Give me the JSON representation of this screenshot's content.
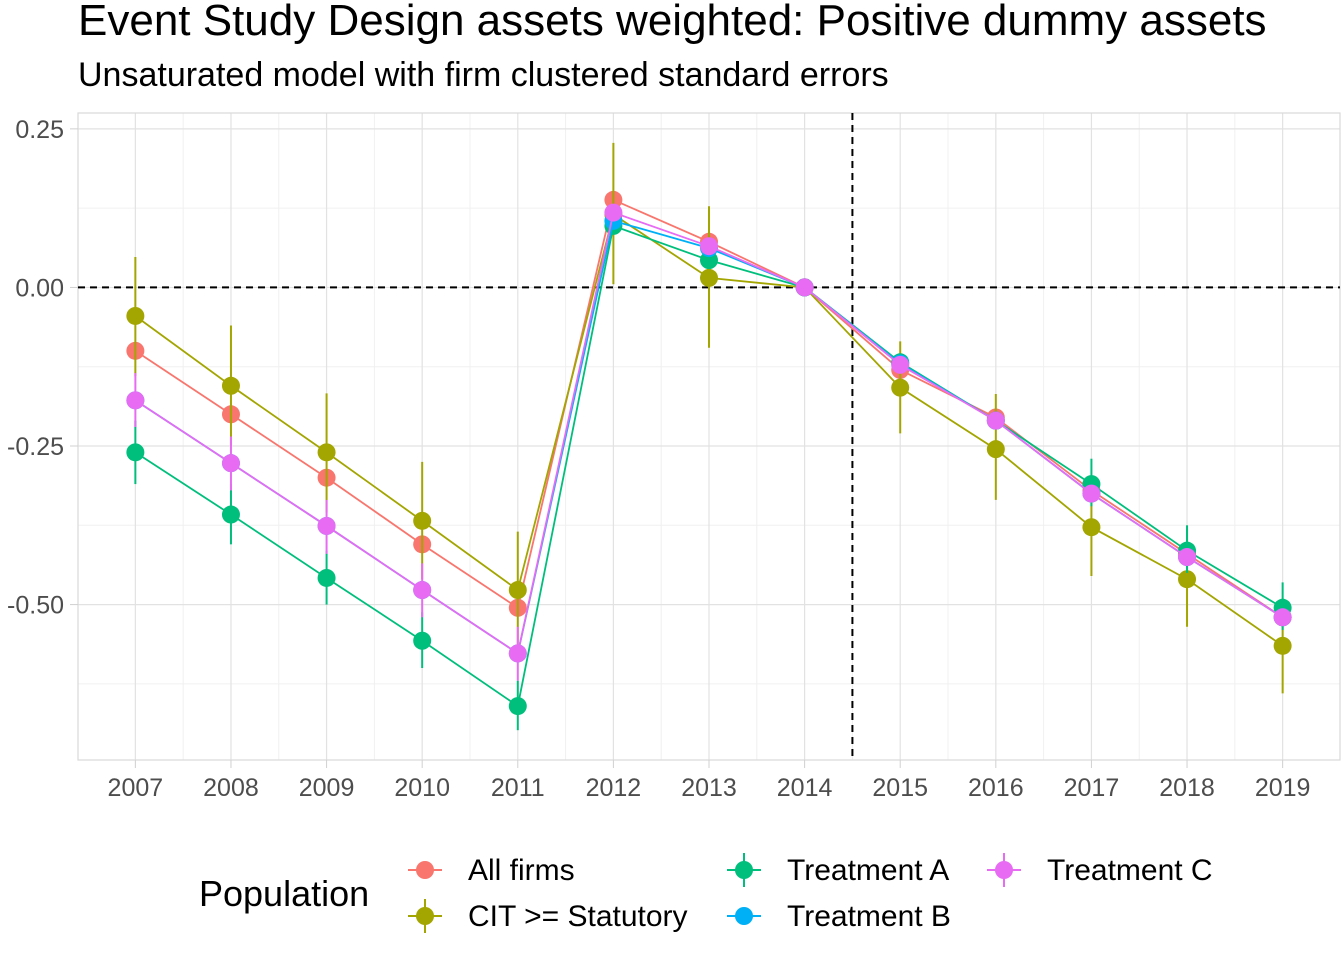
{
  "chart_data": {
    "type": "line",
    "title": "Event Study Design assets weighted: Positive dummy assets",
    "subtitle": "Unsaturated model with firm clustered standard errors",
    "xlabel": "",
    "ylabel": "",
    "x": [
      2007,
      2008,
      2009,
      2010,
      2011,
      2012,
      2013,
      2014,
      2015,
      2016,
      2017,
      2018,
      2019
    ],
    "x_tick_labels": [
      "2007",
      "2008",
      "2009",
      "2010",
      "2011",
      "2012",
      "2013",
      "2014",
      "2015",
      "2016",
      "2017",
      "2018",
      "2019"
    ],
    "y_ticks": [
      0.25,
      0.0,
      -0.25,
      -0.5
    ],
    "y_tick_labels": [
      "0.25",
      "0.00",
      "-0.25",
      "-0.50"
    ],
    "xlim": [
      2006.4,
      2019.6
    ],
    "ylim": [
      -0.745,
      0.275
    ],
    "grid": true,
    "reference_lines": {
      "horizontal_y": 0.0,
      "vertical_x": 2014.5,
      "style": "dashed"
    },
    "legend": {
      "title": "Population",
      "placement": "bottom",
      "entries": [
        "All firms",
        "CIT >= Statutory",
        "Treatment A",
        "Treatment B",
        "Treatment C"
      ]
    },
    "series": [
      {
        "name": "All firms",
        "color": "#F8766D",
        "values": [
          -0.1,
          -0.2,
          -0.3,
          -0.405,
          -0.505,
          0.138,
          0.072,
          0.0,
          -0.13,
          -0.205,
          -0.32,
          -0.42,
          -0.52
        ],
        "ci_low": [
          null,
          null,
          null,
          null,
          null,
          null,
          null,
          null,
          null,
          null,
          null,
          null,
          null
        ],
        "ci_high": [
          null,
          null,
          null,
          null,
          null,
          null,
          null,
          null,
          null,
          null,
          null,
          null,
          null
        ]
      },
      {
        "name": "CIT >= Statutory",
        "color": "#A3A500",
        "values": [
          -0.045,
          -0.155,
          -0.26,
          -0.368,
          -0.477,
          0.115,
          0.015,
          0.0,
          -0.158,
          -0.255,
          -0.378,
          -0.46,
          -0.565
        ],
        "ci_low": [
          -0.14,
          -0.25,
          -0.355,
          -0.46,
          -0.57,
          0.005,
          -0.095,
          null,
          -0.23,
          -0.335,
          -0.455,
          -0.535,
          -0.64
        ],
        "ci_high": [
          0.048,
          -0.06,
          -0.167,
          -0.275,
          -0.385,
          0.228,
          0.128,
          null,
          -0.085,
          -0.168,
          -0.3,
          -0.38,
          -0.49
        ]
      },
      {
        "name": "Treatment A",
        "color": "#00BF7D",
        "values": [
          -0.26,
          -0.358,
          -0.458,
          -0.557,
          -0.66,
          0.097,
          0.043,
          0.0,
          -0.118,
          -0.21,
          -0.31,
          -0.415,
          -0.505
        ],
        "ci_low": [
          -0.31,
          -0.405,
          -0.5,
          -0.6,
          -0.698,
          null,
          null,
          null,
          null,
          null,
          -0.345,
          -0.45,
          -0.54
        ],
        "ci_high": [
          -0.21,
          -0.31,
          -0.415,
          -0.512,
          -0.62,
          null,
          null,
          null,
          null,
          null,
          -0.27,
          -0.375,
          -0.465
        ]
      },
      {
        "name": "Treatment B",
        "color": "#00B0F6",
        "values": [
          -0.178,
          -0.277,
          -0.376,
          -0.477,
          -0.577,
          0.105,
          0.062,
          0.0,
          -0.12,
          -0.21,
          -0.325,
          -0.425,
          -0.52
        ],
        "ci_low": [
          null,
          null,
          null,
          null,
          null,
          null,
          null,
          null,
          null,
          null,
          null,
          null,
          null
        ],
        "ci_high": [
          null,
          null,
          null,
          null,
          null,
          null,
          null,
          null,
          null,
          null,
          null,
          null,
          null
        ]
      },
      {
        "name": "Treatment C",
        "color": "#E76BF3",
        "values": [
          -0.178,
          -0.277,
          -0.376,
          -0.477,
          -0.577,
          0.118,
          0.065,
          0.0,
          -0.122,
          -0.21,
          -0.325,
          -0.425,
          -0.52
        ],
        "ci_low": [
          -0.22,
          -0.32,
          -0.42,
          -0.52,
          -0.62,
          null,
          null,
          null,
          null,
          null,
          null,
          null,
          null
        ],
        "ci_high": [
          -0.135,
          -0.235,
          -0.335,
          -0.435,
          -0.535,
          null,
          null,
          null,
          null,
          null,
          null,
          null,
          null
        ]
      }
    ]
  }
}
